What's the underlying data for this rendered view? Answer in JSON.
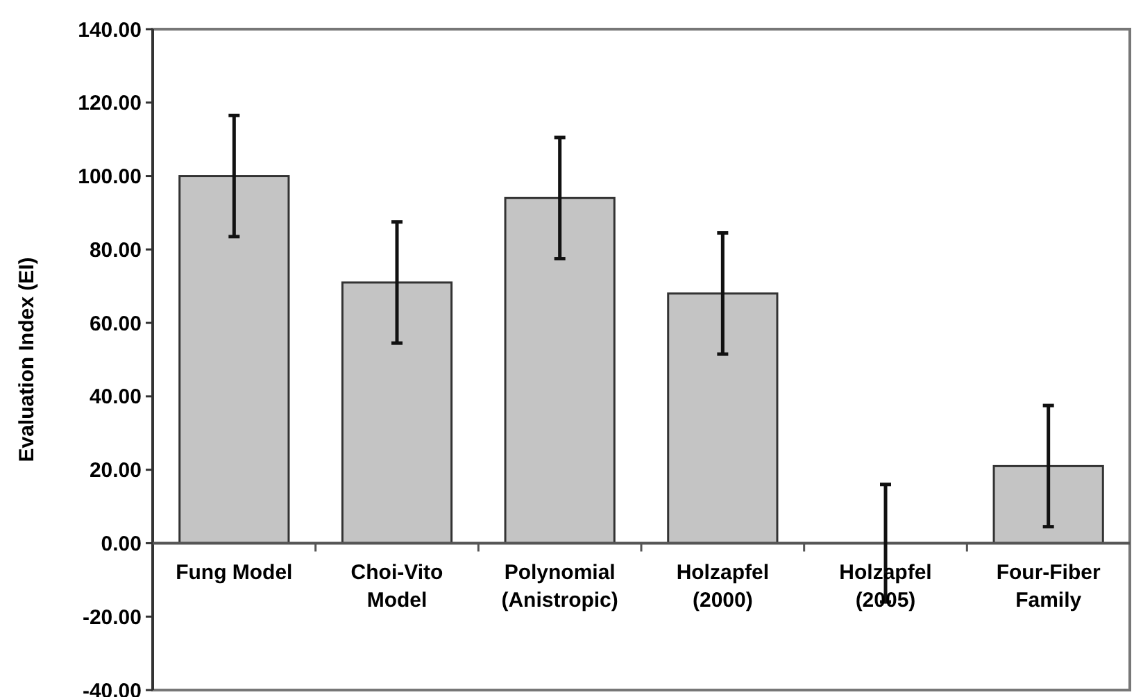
{
  "chart_data": {
    "type": "bar",
    "ylabel": "Evaluation Index (EI)",
    "categories": [
      "Fung Model",
      "Choi-Vito\nModel",
      "Polynomial\n(Anistropic)",
      "Holzapfel\n(2000)",
      "Holzapfel\n(2005)",
      "Four-Fiber\nFamily"
    ],
    "values": [
      100,
      71,
      94,
      68,
      0,
      21
    ],
    "errors": [
      16.5,
      16.5,
      16.5,
      16.5,
      16,
      16.5
    ],
    "color": "#c4c4c4",
    "ylim": [
      -40,
      140
    ],
    "yticks": [
      {
        "value": -40,
        "label": "-40.00"
      },
      {
        "value": -20,
        "label": "-20.00"
      },
      {
        "value": 0,
        "label": "0.00"
      },
      {
        "value": 20,
        "label": "20.00"
      },
      {
        "value": 40,
        "label": "40.00"
      },
      {
        "value": 60,
        "label": "60.00"
      },
      {
        "value": 80,
        "label": "80.00"
      },
      {
        "value": 100,
        "label": "100.00"
      },
      {
        "value": 120,
        "label": "120.00"
      },
      {
        "value": 140,
        "label": "140.00"
      }
    ],
    "grid": false
  }
}
